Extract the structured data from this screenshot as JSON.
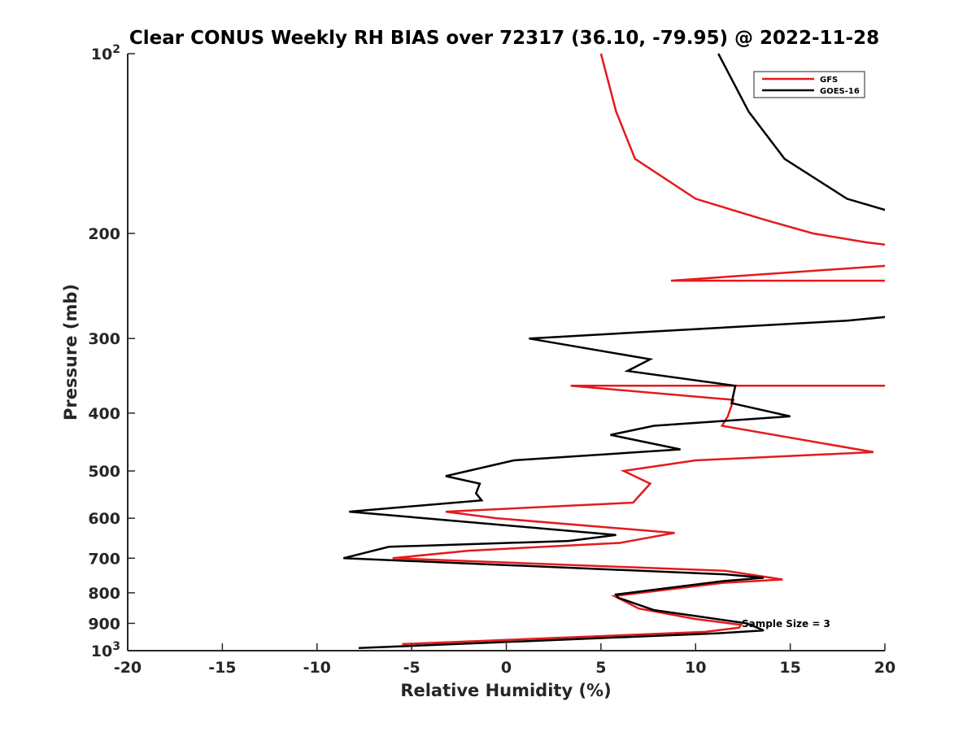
{
  "chart_data": {
    "type": "line",
    "title": "Clear CONUS Weekly RH BIAS over 72317 (36.10, -79.95) @ 2022-11-28",
    "xlabel": "Relative Humidity (%)",
    "ylabel": "Pressure (mb)",
    "xlim": [
      -20,
      20
    ],
    "ylim": [
      100,
      1000
    ],
    "y_scale": "log",
    "y_reversed": true,
    "x_ticks": [
      -20,
      -15,
      -10,
      -5,
      0,
      5,
      10,
      15,
      20
    ],
    "x_tick_labels": [
      "-20",
      "-15",
      "-10",
      "-5",
      "0",
      "5",
      "10",
      "15",
      "20"
    ],
    "y_ticks": [
      100,
      200,
      300,
      400,
      500,
      600,
      700,
      800,
      900,
      1000
    ],
    "y_tick_labels": [
      {
        "base": "10",
        "exp": "2"
      },
      {
        "base": "200"
      },
      {
        "base": "300"
      },
      {
        "base": "400"
      },
      {
        "base": "500"
      },
      {
        "base": "600"
      },
      {
        "base": "700"
      },
      {
        "base": "800"
      },
      {
        "base": "900"
      },
      {
        "base": "10",
        "exp": "3"
      }
    ],
    "grid": false,
    "legend_position": "top-right",
    "annotation": "Sample Size = 3",
    "series": [
      {
        "name": "GFS",
        "color": "#e41a1c",
        "points": [
          [
            5.0,
            100
          ],
          [
            5.8,
            125
          ],
          [
            6.8,
            150
          ],
          [
            10.0,
            175
          ],
          [
            13.7,
            190
          ],
          [
            16.2,
            200
          ],
          [
            19.0,
            207
          ],
          [
            20.6,
            210
          ],
          [
            20.6,
            226
          ],
          [
            8.7,
            240
          ],
          [
            20.6,
            240
          ],
          [
            20.6,
            360
          ],
          [
            3.4,
            360
          ],
          [
            12.0,
            380
          ],
          [
            11.7,
            405
          ],
          [
            11.4,
            420
          ],
          [
            19.4,
            465
          ],
          [
            10.0,
            480
          ],
          [
            6.2,
            500
          ],
          [
            7.6,
            525
          ],
          [
            6.7,
            565
          ],
          [
            -3.2,
            585
          ],
          [
            -0.5,
            600
          ],
          [
            8.9,
            635
          ],
          [
            6.0,
            660
          ],
          [
            -2.0,
            680
          ],
          [
            -6.0,
            700
          ],
          [
            11.6,
            735
          ],
          [
            14.6,
            760
          ],
          [
            11.4,
            770
          ],
          [
            5.7,
            810
          ],
          [
            7.0,
            850
          ],
          [
            10.0,
            885
          ],
          [
            12.4,
            905
          ],
          [
            12.3,
            915
          ],
          [
            10.5,
            930
          ],
          [
            -5.5,
            975
          ]
        ]
      },
      {
        "name": "GOES-16",
        "color": "#000000",
        "points": [
          [
            11.2,
            100
          ],
          [
            12.8,
            125
          ],
          [
            14.7,
            150
          ],
          [
            18.0,
            175
          ],
          [
            20.6,
            185
          ],
          [
            20.6,
            275
          ],
          [
            18.0,
            280
          ],
          [
            1.2,
            300
          ],
          [
            7.6,
            325
          ],
          [
            6.4,
            340
          ],
          [
            12.1,
            360
          ],
          [
            11.9,
            385
          ],
          [
            15.0,
            405
          ],
          [
            7.8,
            420
          ],
          [
            5.5,
            435
          ],
          [
            9.2,
            460
          ],
          [
            0.4,
            480
          ],
          [
            -3.2,
            510
          ],
          [
            -1.4,
            525
          ],
          [
            -1.6,
            545
          ],
          [
            -1.3,
            560
          ],
          [
            -8.3,
            585
          ],
          [
            5.8,
            640
          ],
          [
            3.3,
            655
          ],
          [
            -6.2,
            670
          ],
          [
            -8.6,
            700
          ],
          [
            11.6,
            745
          ],
          [
            13.6,
            755
          ],
          [
            11.4,
            765
          ],
          [
            5.8,
            805
          ],
          [
            5.9,
            815
          ],
          [
            7.8,
            855
          ],
          [
            10.0,
            875
          ],
          [
            12.7,
            900
          ],
          [
            13.6,
            925
          ],
          [
            11.2,
            935
          ],
          [
            -7.8,
            990
          ]
        ]
      }
    ]
  }
}
